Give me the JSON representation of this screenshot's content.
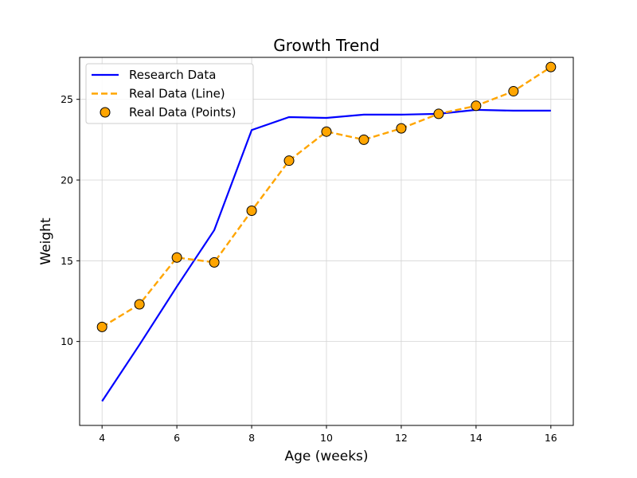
{
  "chart_data": {
    "type": "line",
    "title": "Growth Trend",
    "xlabel": "Age (weeks)",
    "ylabel": "Weight",
    "xlim": [
      3.4,
      16.6
    ],
    "ylim": [
      4.8,
      27.6
    ],
    "xticks": [
      4,
      6,
      8,
      10,
      12,
      14,
      16
    ],
    "yticks": [
      10,
      15,
      20,
      25
    ],
    "grid": true,
    "legend_position": "top-left",
    "series": [
      {
        "name": "Research Data",
        "style": "solid-line",
        "color": "#0000ff",
        "x": [
          4,
          5,
          6,
          7,
          8,
          9,
          10,
          11,
          12,
          13,
          14,
          15,
          16
        ],
        "y": [
          6.3,
          9.8,
          13.4,
          16.9,
          23.1,
          23.9,
          23.85,
          24.05,
          24.05,
          24.1,
          24.35,
          24.3,
          24.3
        ]
      },
      {
        "name": "Real Data (Line)",
        "style": "dashed-line",
        "color": "#ffa500",
        "x": [
          4,
          5,
          6,
          7,
          8,
          9,
          10,
          11,
          12,
          13,
          14,
          15,
          16
        ],
        "y": [
          10.9,
          12.3,
          15.2,
          14.9,
          18.1,
          21.2,
          23.0,
          22.5,
          23.2,
          24.1,
          24.6,
          25.5,
          27.0
        ]
      },
      {
        "name": "Real Data (Points)",
        "style": "markers",
        "color": "#ffa500",
        "x": [
          4,
          5,
          6,
          7,
          8,
          9,
          10,
          11,
          12,
          13,
          14,
          15,
          16
        ],
        "y": [
          10.9,
          12.3,
          15.2,
          14.9,
          18.1,
          21.2,
          23.0,
          22.5,
          23.2,
          24.1,
          24.6,
          25.5,
          27.0
        ]
      }
    ]
  }
}
